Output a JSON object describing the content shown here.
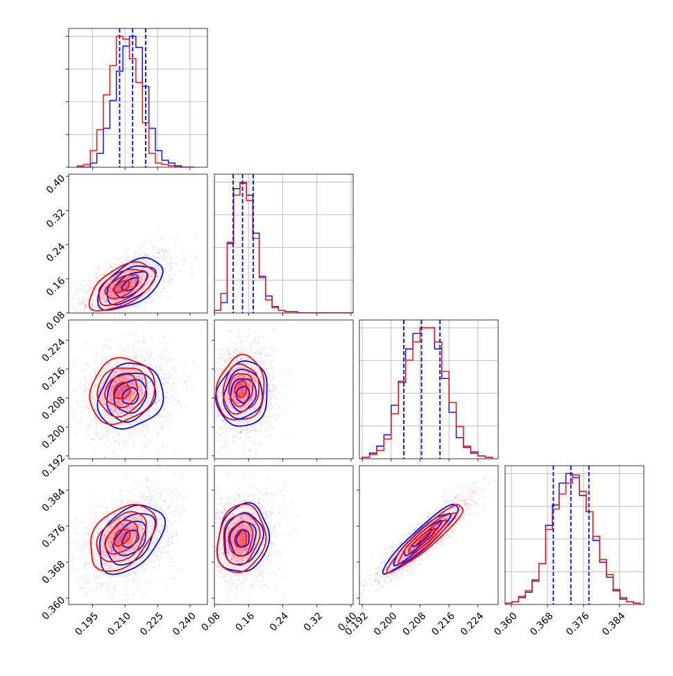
{
  "chart_data": {
    "type": "corner",
    "title": "",
    "n_params": 4,
    "colors": {
      "series_a": "#ff0000",
      "series_b": "#0000ff",
      "grid": "#b0b0b0",
      "frame": "#000000"
    },
    "axes": [
      {
        "range": [
          0.184,
          0.248
        ],
        "ticks": [
          0.195,
          0.21,
          0.225,
          0.24
        ],
        "tick_labels": [
          "0.195",
          "0.210",
          "0.225",
          "0.240"
        ]
      },
      {
        "range": [
          0.08,
          0.405
        ],
        "ticks": [
          0.08,
          0.16,
          0.24,
          0.32,
          0.4
        ],
        "tick_labels": [
          "0.08",
          "0.16",
          "0.24",
          "0.32",
          "0.40"
        ]
      },
      {
        "range": [
          0.1912,
          0.2296
        ],
        "ticks": [
          0.192,
          0.2,
          0.208,
          0.216,
          0.224
        ],
        "tick_labels": [
          "0.192",
          "0.200",
          "0.208",
          "0.216",
          "0.224"
        ]
      },
      {
        "range": [
          0.3586,
          0.3894
        ],
        "ticks": [
          0.36,
          0.368,
          0.376,
          0.384
        ],
        "tick_labels": [
          "0.360",
          "0.368",
          "0.376",
          "0.384"
        ]
      }
    ],
    "diagonal_histograms": [
      {
        "param": 0,
        "bin_edges": [
          0.188,
          0.191,
          0.194,
          0.197,
          0.2,
          0.203,
          0.206,
          0.209,
          0.212,
          0.215,
          0.218,
          0.221,
          0.224,
          0.227,
          0.23,
          0.233,
          0.236,
          0.239,
          0.242
        ],
        "series_a_counts": [
          1,
          2,
          12,
          27,
          52,
          73,
          94,
          92,
          78,
          61,
          32,
          10,
          3,
          2,
          1,
          0,
          0,
          0
        ],
        "series_b_counts": [
          0,
          0,
          3,
          10,
          28,
          48,
          69,
          87,
          94,
          86,
          58,
          28,
          12,
          5,
          3,
          1,
          0,
          0
        ],
        "quantiles": [
          0.2075,
          0.2135,
          0.2195
        ]
      },
      {
        "param": 1,
        "bin_edges": [
          0.08,
          0.095,
          0.11,
          0.125,
          0.14,
          0.155,
          0.17,
          0.185,
          0.2,
          0.215,
          0.23,
          0.245,
          0.26,
          0.275,
          0.29,
          0.305,
          0.32,
          0.335,
          0.35,
          0.365,
          0.38,
          0.395,
          0.41
        ],
        "series_a_counts": [
          2,
          15,
          54,
          90,
          100,
          86,
          57,
          27,
          10,
          4,
          2,
          1,
          1,
          0,
          0,
          0,
          0,
          0,
          0,
          0,
          0,
          0
        ],
        "series_b_counts": [
          2,
          8,
          53,
          95,
          99,
          90,
          61,
          28,
          13,
          5,
          2,
          1,
          1,
          0,
          0,
          0,
          0,
          0,
          0,
          0,
          0,
          0
        ],
        "quantiles": [
          0.124,
          0.146,
          0.171
        ]
      },
      {
        "param": 2,
        "bin_edges": [
          0.192,
          0.194,
          0.196,
          0.198,
          0.2,
          0.202,
          0.204,
          0.206,
          0.208,
          0.21,
          0.212,
          0.214,
          0.216,
          0.218,
          0.22,
          0.222,
          0.224,
          0.226,
          0.228
        ],
        "series_a_counts": [
          1,
          3,
          6,
          14,
          32,
          54,
          70,
          83,
          93,
          93,
          83,
          62,
          40,
          23,
          9,
          5,
          2,
          1
        ],
        "series_b_counts": [
          1,
          4,
          9,
          17,
          38,
          55,
          78,
          89,
          93,
          93,
          78,
          57,
          33,
          15,
          8,
          4,
          2,
          1
        ],
        "quantiles": [
          0.2035,
          0.2084,
          0.2135
        ]
      },
      {
        "param": 3,
        "bin_edges": [
          0.3586,
          0.3601,
          0.3616,
          0.3631,
          0.3646,
          0.3661,
          0.3676,
          0.3691,
          0.3706,
          0.3721,
          0.3736,
          0.3751,
          0.3766,
          0.3781,
          0.3796,
          0.3811,
          0.3826,
          0.3841,
          0.3856,
          0.3871,
          0.3886
        ],
        "series_a_counts": [
          1,
          2,
          6,
          10,
          17,
          30,
          55,
          70,
          81,
          89,
          95,
          83,
          68,
          50,
          33,
          22,
          11,
          5,
          2,
          1
        ],
        "series_b_counts": [
          1,
          2,
          5,
          9,
          18,
          30,
          58,
          73,
          89,
          96,
          93,
          80,
          68,
          47,
          31,
          20,
          10,
          4,
          2,
          1
        ],
        "quantiles": [
          0.3693,
          0.3732,
          0.3772
        ]
      }
    ],
    "contour_panels": [
      {
        "x_param": 0,
        "y_param": 1,
        "series_a": {
          "mean": [
            0.2085,
            0.142
          ],
          "sd": [
            0.0075,
            0.028
          ],
          "corr": 0.55
        },
        "series_b": {
          "mean": [
            0.2125,
            0.147
          ],
          "sd": [
            0.0075,
            0.03
          ],
          "corr": 0.55
        }
      },
      {
        "x_param": 0,
        "y_param": 2,
        "series_a": {
          "mean": [
            0.2085,
            0.21
          ],
          "sd": [
            0.0075,
            0.0045
          ],
          "corr": 0.15
        },
        "series_b": {
          "mean": [
            0.2125,
            0.2085
          ],
          "sd": [
            0.0075,
            0.0045
          ],
          "corr": 0.15
        }
      },
      {
        "x_param": 1,
        "y_param": 2,
        "series_a": {
          "mean": [
            0.142,
            0.2105
          ],
          "sd": [
            0.028,
            0.0045
          ],
          "corr": 0.1
        },
        "series_b": {
          "mean": [
            0.147,
            0.209
          ],
          "sd": [
            0.03,
            0.0045
          ],
          "corr": 0.1
        }
      },
      {
        "x_param": 0,
        "y_param": 3,
        "series_a": {
          "mean": [
            0.2085,
            0.3735
          ],
          "sd": [
            0.0075,
            0.0037
          ],
          "corr": 0.4
        },
        "series_b": {
          "mean": [
            0.2125,
            0.3732
          ],
          "sd": [
            0.0075,
            0.0038
          ],
          "corr": 0.4
        }
      },
      {
        "x_param": 1,
        "y_param": 3,
        "series_a": {
          "mean": [
            0.142,
            0.3732
          ],
          "sd": [
            0.028,
            0.0038
          ],
          "corr": 0.15
        },
        "series_b": {
          "mean": [
            0.147,
            0.3732
          ],
          "sd": [
            0.03,
            0.0038
          ],
          "corr": 0.15
        }
      },
      {
        "x_param": 2,
        "y_param": 3,
        "series_a": {
          "mean": [
            0.2098,
            0.3735
          ],
          "sd": [
            0.0052,
            0.0037
          ],
          "corr": 0.93
        },
        "series_b": {
          "mean": [
            0.2085,
            0.3733
          ],
          "sd": [
            0.0052,
            0.0038
          ],
          "corr": 0.93
        }
      }
    ],
    "contour_levels_sigma": [
      0.5,
      1.0,
      1.5,
      2.0
    ],
    "grid": true,
    "legend": "none"
  }
}
